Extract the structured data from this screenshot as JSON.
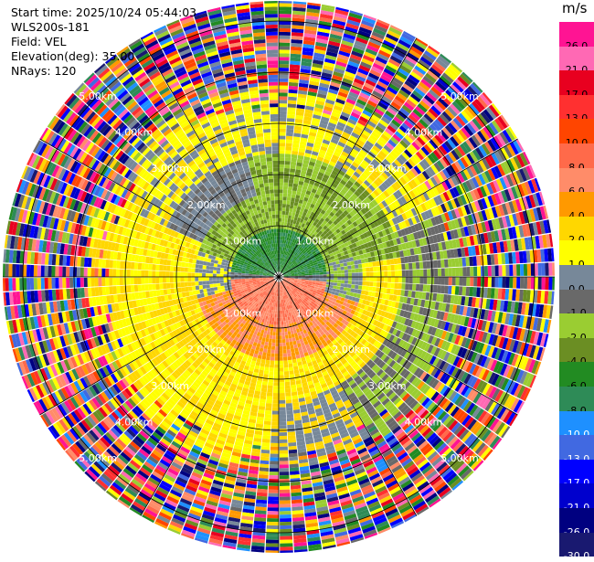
{
  "header": {
    "start_time": "Start time: 2025/10/24 05:44:03",
    "instrument": "WLS200s-181",
    "field": "Field: VEL",
    "elevation": "Elevation(deg): 35.00",
    "nrays": "NRays: 120"
  },
  "colorbar": {
    "unit": "m/s",
    "labels": [
      "26.0",
      "21.0",
      "17.0",
      "13.0",
      "10.0",
      "8.0",
      "6.0",
      "4.0",
      "2.0",
      "1.0",
      "0.0",
      "-1.0",
      "-2.0",
      "-4.0",
      "-6.0",
      "-8.0",
      "-10.0",
      "-13.0",
      "-17.0",
      "-21.0",
      "-26.0",
      "-30.0"
    ],
    "colors": [
      "#ff1493",
      "#ff69b4",
      "#e8001f",
      "#ff3030",
      "#ff4500",
      "#ff6a4a",
      "#ff8c69",
      "#ff9900",
      "#ffd700",
      "#ffff00",
      "#778899",
      "#696969",
      "#9acd32",
      "#6b8e23",
      "#228b22",
      "#2e8b57",
      "#1e90ff",
      "#4169e1",
      "#0000ff",
      "#0000cd",
      "#000080",
      "#191970"
    ]
  },
  "chart_data": {
    "type": "ppi",
    "field": "VEL",
    "units": "m/s",
    "n_rays": 120,
    "elevation_deg": 35.0,
    "range_ring_labels": [
      "1.00km",
      "2.00km",
      "3.00km",
      "4.00km",
      "5.00km"
    ],
    "max_range_km": 5.5,
    "pattern": [
      {
        "region": "near center, north",
        "range_km": [
          0,
          0.9
        ],
        "values": [
          -6,
          -8
        ]
      },
      {
        "region": "near center, south",
        "range_km": [
          0,
          0.9
        ],
        "values": [
          6,
          8
        ]
      },
      {
        "region": "north ring",
        "range_km": [
          0.9,
          2.2
        ],
        "values": [
          -1,
          -2,
          -4
        ]
      },
      {
        "region": "south ring",
        "range_km": [
          0.9,
          2.2
        ],
        "values": [
          2,
          4,
          1
        ]
      },
      {
        "region": "mid ranges",
        "range_km": [
          2.2,
          3.5
        ],
        "values": [
          1,
          2,
          0,
          -2
        ]
      },
      {
        "region": "outer",
        "range_km": [
          3.6,
          5.5
        ],
        "values": "noise, mixed all classes"
      }
    ]
  }
}
